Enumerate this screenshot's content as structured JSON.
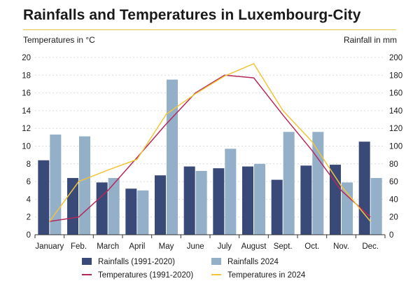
{
  "chart_data": {
    "type": "bar",
    "title": "Rainfalls and Temperatures in Luxembourg-City",
    "ylabel_left": "Temperatures in °C",
    "ylabel_right": "Rainfall in mm",
    "categories": [
      "January",
      "Feb.",
      "March",
      "April",
      "May",
      "June",
      "July",
      "August",
      "Sept.",
      "Oct.",
      "Nov.",
      "Dec."
    ],
    "y_left_lim": [
      0,
      20
    ],
    "y_left_ticks": [
      0,
      2,
      4,
      6,
      8,
      10,
      12,
      14,
      16,
      18,
      20
    ],
    "y_right_lim": [
      0,
      200
    ],
    "y_right_ticks": [
      0,
      20,
      40,
      60,
      80,
      100,
      120,
      140,
      160,
      180,
      200
    ],
    "grid": true,
    "legend_position": "bottom",
    "bar_series": [
      {
        "name": "Rainfalls (1991-2020)",
        "axis": "right",
        "color": "#3a4a78",
        "values": [
          84,
          64,
          59,
          52,
          67,
          77,
          75,
          77,
          62,
          78,
          79,
          105
        ]
      },
      {
        "name": "Rainfalls 2024",
        "axis": "right",
        "color": "#94afc8",
        "values": [
          113,
          111,
          64,
          50,
          175,
          72,
          97,
          80,
          116,
          116,
          59,
          64
        ]
      }
    ],
    "line_series": [
      {
        "name": "Temperatures (1991-2020)",
        "axis": "left",
        "color": "#b5285a",
        "values": [
          1.5,
          2.0,
          5.0,
          8.7,
          12.5,
          16.0,
          18.0,
          17.7,
          13.5,
          9.5,
          5.0,
          2.0
        ]
      },
      {
        "name": "Temperatures in 2024",
        "axis": "left",
        "color": "#f0c43a",
        "values": [
          1.5,
          6.0,
          7.3,
          8.5,
          13.6,
          15.9,
          17.9,
          19.3,
          14.0,
          10.5,
          5.5,
          1.5
        ]
      }
    ]
  }
}
